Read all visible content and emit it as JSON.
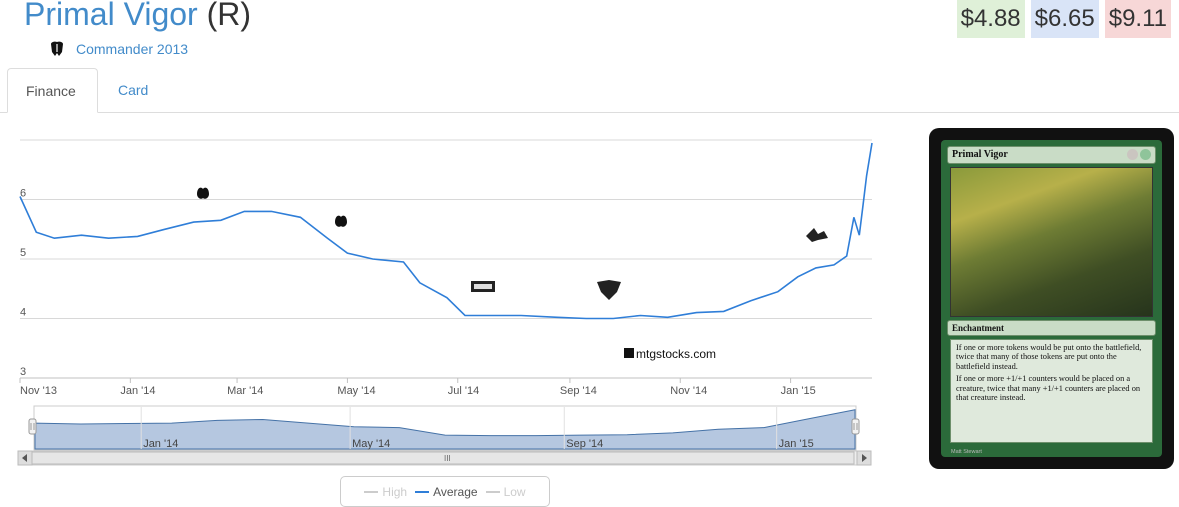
{
  "card": {
    "name": "Primal Vigor",
    "rarity": "(R)",
    "set_name": "Commander 2013",
    "image_type": "Enchantment",
    "image_rules": [
      "If one or more tokens would be put onto the battlefield, twice that many of those tokens are put onto the battlefield instead.",
      "If one or more +1/+1 counters would be placed on a creature, twice that many +1/+1 counters are placed on that creature instead."
    ],
    "image_artist": "Matt Stewart"
  },
  "prices": {
    "low": "$4.88",
    "average": "$6.65",
    "high": "$9.11"
  },
  "colors": {
    "low_bg": "#dff0d8",
    "avg_bg": "#d9e4f7",
    "high_bg": "#f7d7d7",
    "series_line": "#2f7ed8",
    "navigator_fill": "#b5c7e0",
    "link": "#428bca"
  },
  "tabs": [
    {
      "label": "Finance"
    },
    {
      "label": "Card"
    }
  ],
  "watermark": "mtgstocks.com",
  "legend": {
    "high": "High",
    "average": "Average",
    "low": "Low"
  },
  "navigator": {
    "scroll_grip": "III",
    "labels": [
      "Jan '14",
      "May '14",
      "Sep '14",
      "Jan '15"
    ]
  },
  "chart_data": {
    "type": "line",
    "x_ticks": [
      "Nov '13",
      "Jan '14",
      "Mar '14",
      "May '14",
      "Jul '14",
      "Sep '14",
      "Nov '14",
      "Jan '15"
    ],
    "y_ticks": [
      3,
      4,
      5,
      6
    ],
    "ylim": [
      3,
      7
    ],
    "xlim": [
      "2013-11-01",
      "2015-02-15"
    ],
    "grid": true,
    "series": [
      {
        "name": "Average",
        "x": [
          "2013-11-01",
          "2013-11-10",
          "2013-11-20",
          "2013-12-05",
          "2013-12-20",
          "2014-01-05",
          "2014-01-20",
          "2014-02-05",
          "2014-02-20",
          "2014-03-05",
          "2014-03-20",
          "2014-04-05",
          "2014-04-20",
          "2014-05-01",
          "2014-05-15",
          "2014-06-01",
          "2014-06-10",
          "2014-06-25",
          "2014-07-05",
          "2014-07-20",
          "2014-08-05",
          "2014-08-25",
          "2014-09-10",
          "2014-09-25",
          "2014-10-10",
          "2014-10-25",
          "2014-11-10",
          "2014-11-25",
          "2014-12-10",
          "2014-12-25",
          "2015-01-05",
          "2015-01-15",
          "2015-01-25",
          "2015-02-01",
          "2015-02-05",
          "2015-02-08",
          "2015-02-10",
          "2015-02-12",
          "2015-02-15"
        ],
        "values": [
          6.05,
          5.45,
          5.35,
          5.4,
          5.35,
          5.38,
          5.5,
          5.62,
          5.65,
          5.8,
          5.8,
          5.7,
          5.35,
          5.1,
          5.0,
          4.95,
          4.6,
          4.35,
          4.05,
          4.05,
          4.05,
          4.02,
          4.0,
          4.0,
          4.05,
          4.02,
          4.1,
          4.12,
          4.3,
          4.45,
          4.7,
          4.85,
          4.9,
          5.05,
          5.7,
          5.4,
          5.9,
          6.4,
          6.95
        ]
      }
    ],
    "navigator_values": [
      5.4,
      5.3,
      5.35,
      5.4,
      5.7,
      5.8,
      5.4,
      5.0,
      4.9,
      4.05,
      4.0,
      4.0,
      4.05,
      4.1,
      4.3,
      4.7,
      4.9,
      5.9,
      6.9
    ]
  }
}
